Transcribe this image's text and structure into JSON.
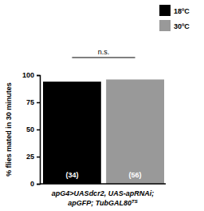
{
  "chart_data": {
    "type": "bar",
    "categories": [
      null
    ],
    "series": [
      {
        "name": "18ºC",
        "color": "#000000",
        "values": [
          94
        ],
        "n_label": "(34)"
      },
      {
        "name": "30ºC",
        "color": "#999999",
        "values": [
          96
        ],
        "n_label": "(56)"
      }
    ],
    "y_label": "% flies mated in 30 minutes",
    "x_label": [
      "apG4>UASdcr2, UAS-apRNAi;",
      "apGFP; TubGAL80"
    ],
    "x_label_sup": "TS",
    "annotations": [
      "n.s."
    ],
    "legend": "top-right",
    "ylim": [
      0,
      100
    ],
    "yticks": [
      0,
      25,
      50,
      75,
      100
    ],
    "grid": false
  }
}
